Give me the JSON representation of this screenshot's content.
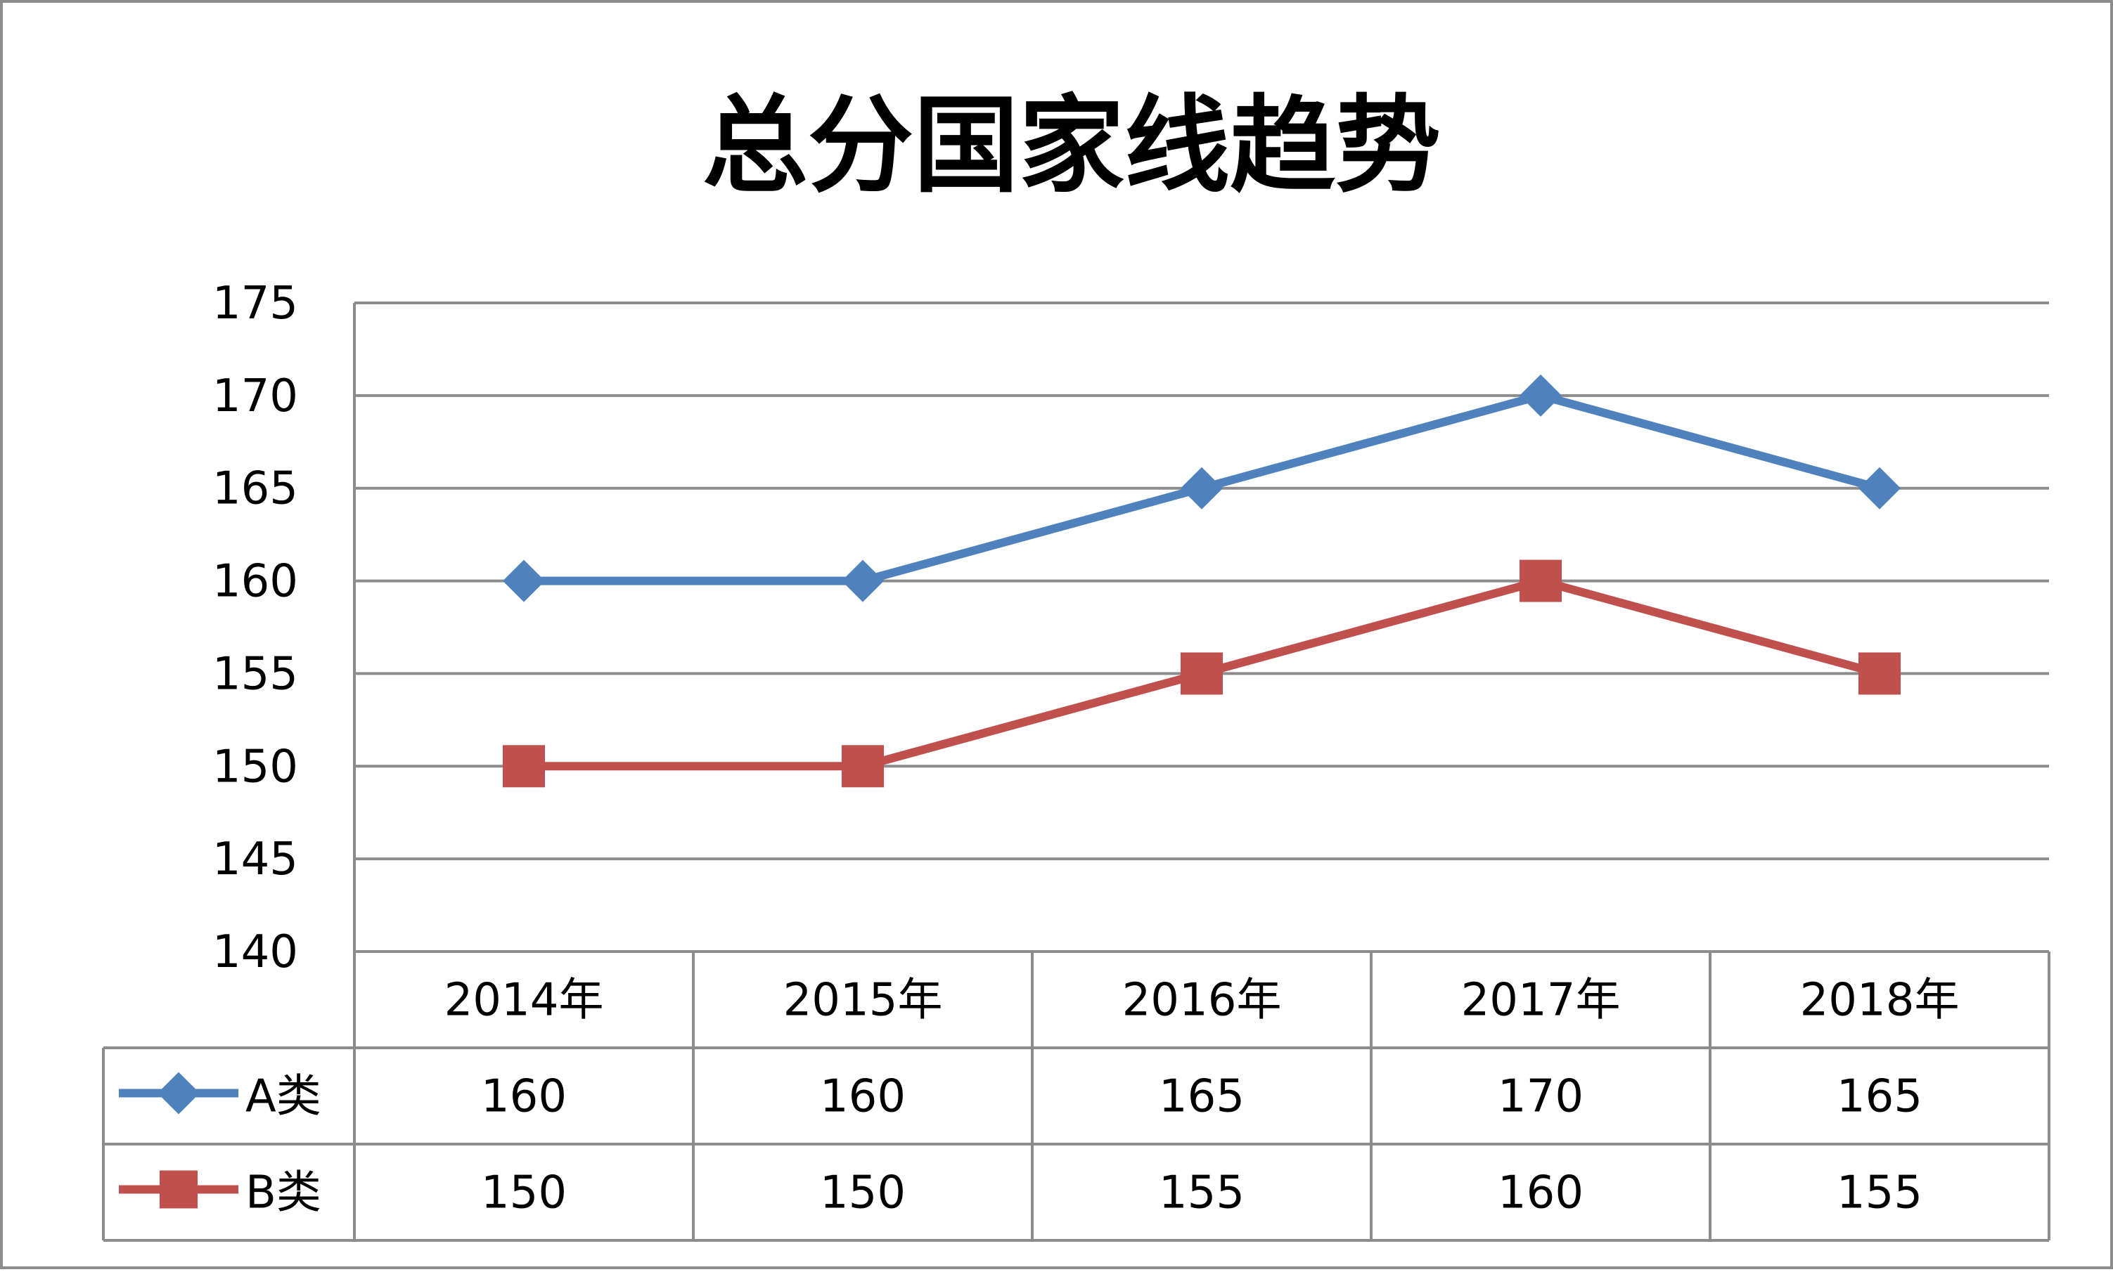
{
  "chart_data": {
    "type": "line",
    "title": "总分国家线趋势",
    "categories": [
      "2014年",
      "2015年",
      "2016年",
      "2017年",
      "2018年"
    ],
    "series": [
      {
        "name": "A类",
        "values": [
          160,
          160,
          165,
          170,
          165
        ],
        "color": "#4f81bd",
        "marker": "diamond"
      },
      {
        "name": "B类",
        "values": [
          150,
          150,
          155,
          160,
          155
        ],
        "color": "#c0504d",
        "marker": "square"
      }
    ],
    "ylim": [
      140,
      175
    ],
    "yticks": [
      175,
      170,
      165,
      160,
      155,
      150,
      145,
      140
    ],
    "grid": true,
    "legend": "data-table",
    "xlabel": "",
    "ylabel": ""
  }
}
